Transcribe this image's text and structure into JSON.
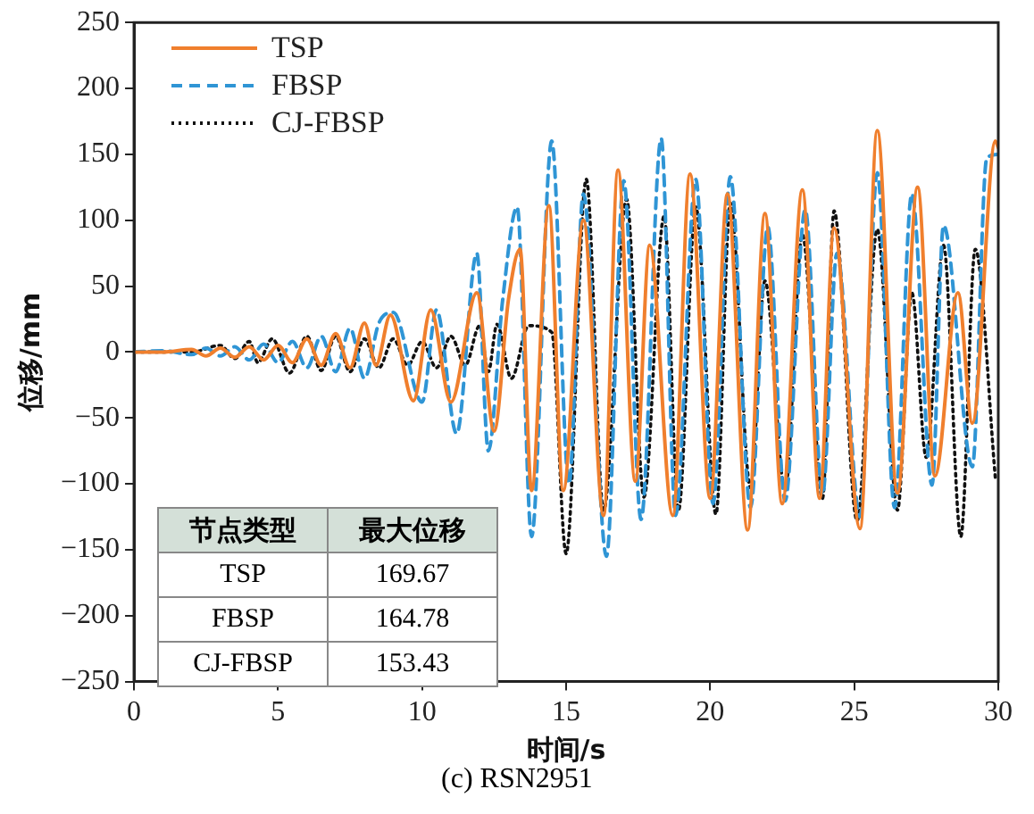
{
  "chart_data": {
    "type": "line",
    "title": "(c) RSN2951",
    "xlabel": "时间/s",
    "ylabel": "位移/mm",
    "xlim": [
      0,
      30
    ],
    "xticks": [
      0,
      5,
      10,
      15,
      20,
      25,
      30
    ],
    "ylim": [
      -250,
      250
    ],
    "yticks": [
      {
        "value": -250,
        "label": "−250"
      },
      {
        "value": -200,
        "label": "−200"
      },
      {
        "value": -150,
        "label": "−150"
      },
      {
        "value": -100,
        "label": "−100"
      },
      {
        "value": -50,
        "label": "−50"
      },
      0,
      50,
      100,
      150,
      200,
      250
    ],
    "legend": "top left",
    "grid": false,
    "marker": "none",
    "annotations": [
      "节点类型",
      "最大位移",
      "TSP",
      "169.67",
      "FBSP",
      "164.78",
      "CJ-FBSP",
      "153.43"
    ],
    "series": [
      {
        "name": "TSP",
        "color": "#f07f2d",
        "line_style": "solid",
        "x": [
          0,
          1,
          2,
          2.5,
          3,
          3.5,
          4,
          4.5,
          5,
          5.5,
          6,
          6.5,
          7,
          7.5,
          8,
          8.4,
          8.9,
          9.7,
          10.3,
          11.0,
          11.9,
          12.5,
          13.0,
          13.4,
          13.8,
          14.4,
          14.9,
          15.6,
          16.3,
          16.8,
          17.4,
          17.9,
          18.7,
          19.3,
          20.0,
          20.6,
          21.3,
          21.9,
          22.5,
          23.2,
          23.8,
          24.3,
          25.2,
          25.8,
          26.5,
          27.2,
          27.8,
          28.6,
          29.1,
          29.9,
          30
        ],
        "values": [
          0,
          0,
          2,
          -3,
          3,
          -4,
          4,
          -6,
          5,
          -8,
          10,
          -10,
          14,
          -12,
          22,
          -10,
          28,
          -37,
          32,
          -38,
          45,
          -60,
          40,
          78,
          -105,
          111,
          -105,
          100,
          -124,
          138,
          -98,
          81,
          -124,
          135,
          -111,
          120,
          -135,
          105,
          -115,
          123,
          -111,
          94,
          -134,
          168,
          -107,
          125,
          -94,
          45,
          -54,
          160,
          155
        ]
      },
      {
        "name": "FBSP",
        "color": "#2f95d5",
        "line_style": "dashed",
        "x": [
          0,
          1,
          2,
          2.5,
          3,
          3.5,
          4,
          4.5,
          5,
          5.5,
          6,
          6.5,
          7,
          7.5,
          8,
          8.5,
          9.0,
          10.0,
          10.5,
          11.2,
          11.9,
          12.3,
          12.8,
          13.3,
          13.8,
          14.5,
          15.1,
          15.6,
          16.4,
          17.0,
          17.6,
          18.3,
          18.8,
          19.5,
          20.1,
          20.7,
          21.4,
          22.0,
          22.6,
          23.3,
          23.9,
          24.4,
          25.2,
          25.8,
          26.4,
          27.0,
          27.7,
          28.1,
          29.1,
          29.6,
          30
        ],
        "values": [
          0,
          1,
          -2,
          3,
          -3,
          4,
          -6,
          6,
          -8,
          8,
          -12,
          12,
          -15,
          18,
          -20,
          22,
          30,
          -38,
          32,
          -62,
          75,
          -75,
          40,
          110,
          -140,
          160,
          -100,
          120,
          -155,
          130,
          -127,
          162,
          -124,
          131,
          -115,
          133,
          -118,
          95,
          -113,
          108,
          -108,
          75,
          -125,
          136,
          -118,
          120,
          -101,
          96,
          -87,
          147,
          150
        ]
      },
      {
        "name": "CJ-FBSP",
        "color": "#111111",
        "line_style": "dotted",
        "x": [
          0,
          2,
          3,
          3.5,
          4,
          4.3,
          4.8,
          5.4,
          6,
          6.5,
          7,
          7.5,
          8,
          8.5,
          9,
          9.5,
          10,
          10.5,
          11,
          11.5,
          12,
          12.3,
          12.6,
          13.1,
          13.7,
          14.5,
          15.0,
          15.7,
          16.3,
          17.1,
          17.7,
          18.4,
          18.9,
          19.5,
          20.2,
          20.7,
          21.4,
          21.9,
          22.6,
          23.2,
          23.9,
          24.3,
          25.1,
          25.8,
          26.5,
          27.0,
          27.5,
          28.1,
          28.7,
          29.2,
          29.9
        ],
        "values": [
          0,
          0,
          5,
          -5,
          8,
          -8,
          10,
          -16,
          12,
          -14,
          12,
          -15,
          10,
          -12,
          10,
          -10,
          8,
          -12,
          12,
          -10,
          20,
          -15,
          21,
          -20,
          20,
          15,
          -153,
          131,
          -120,
          116,
          -110,
          103,
          -120,
          110,
          -123,
          113,
          -103,
          54,
          -105,
          89,
          -111,
          107,
          -128,
          93,
          -120,
          45,
          -80,
          81,
          -140,
          78,
          -96
        ]
      }
    ]
  }
}
